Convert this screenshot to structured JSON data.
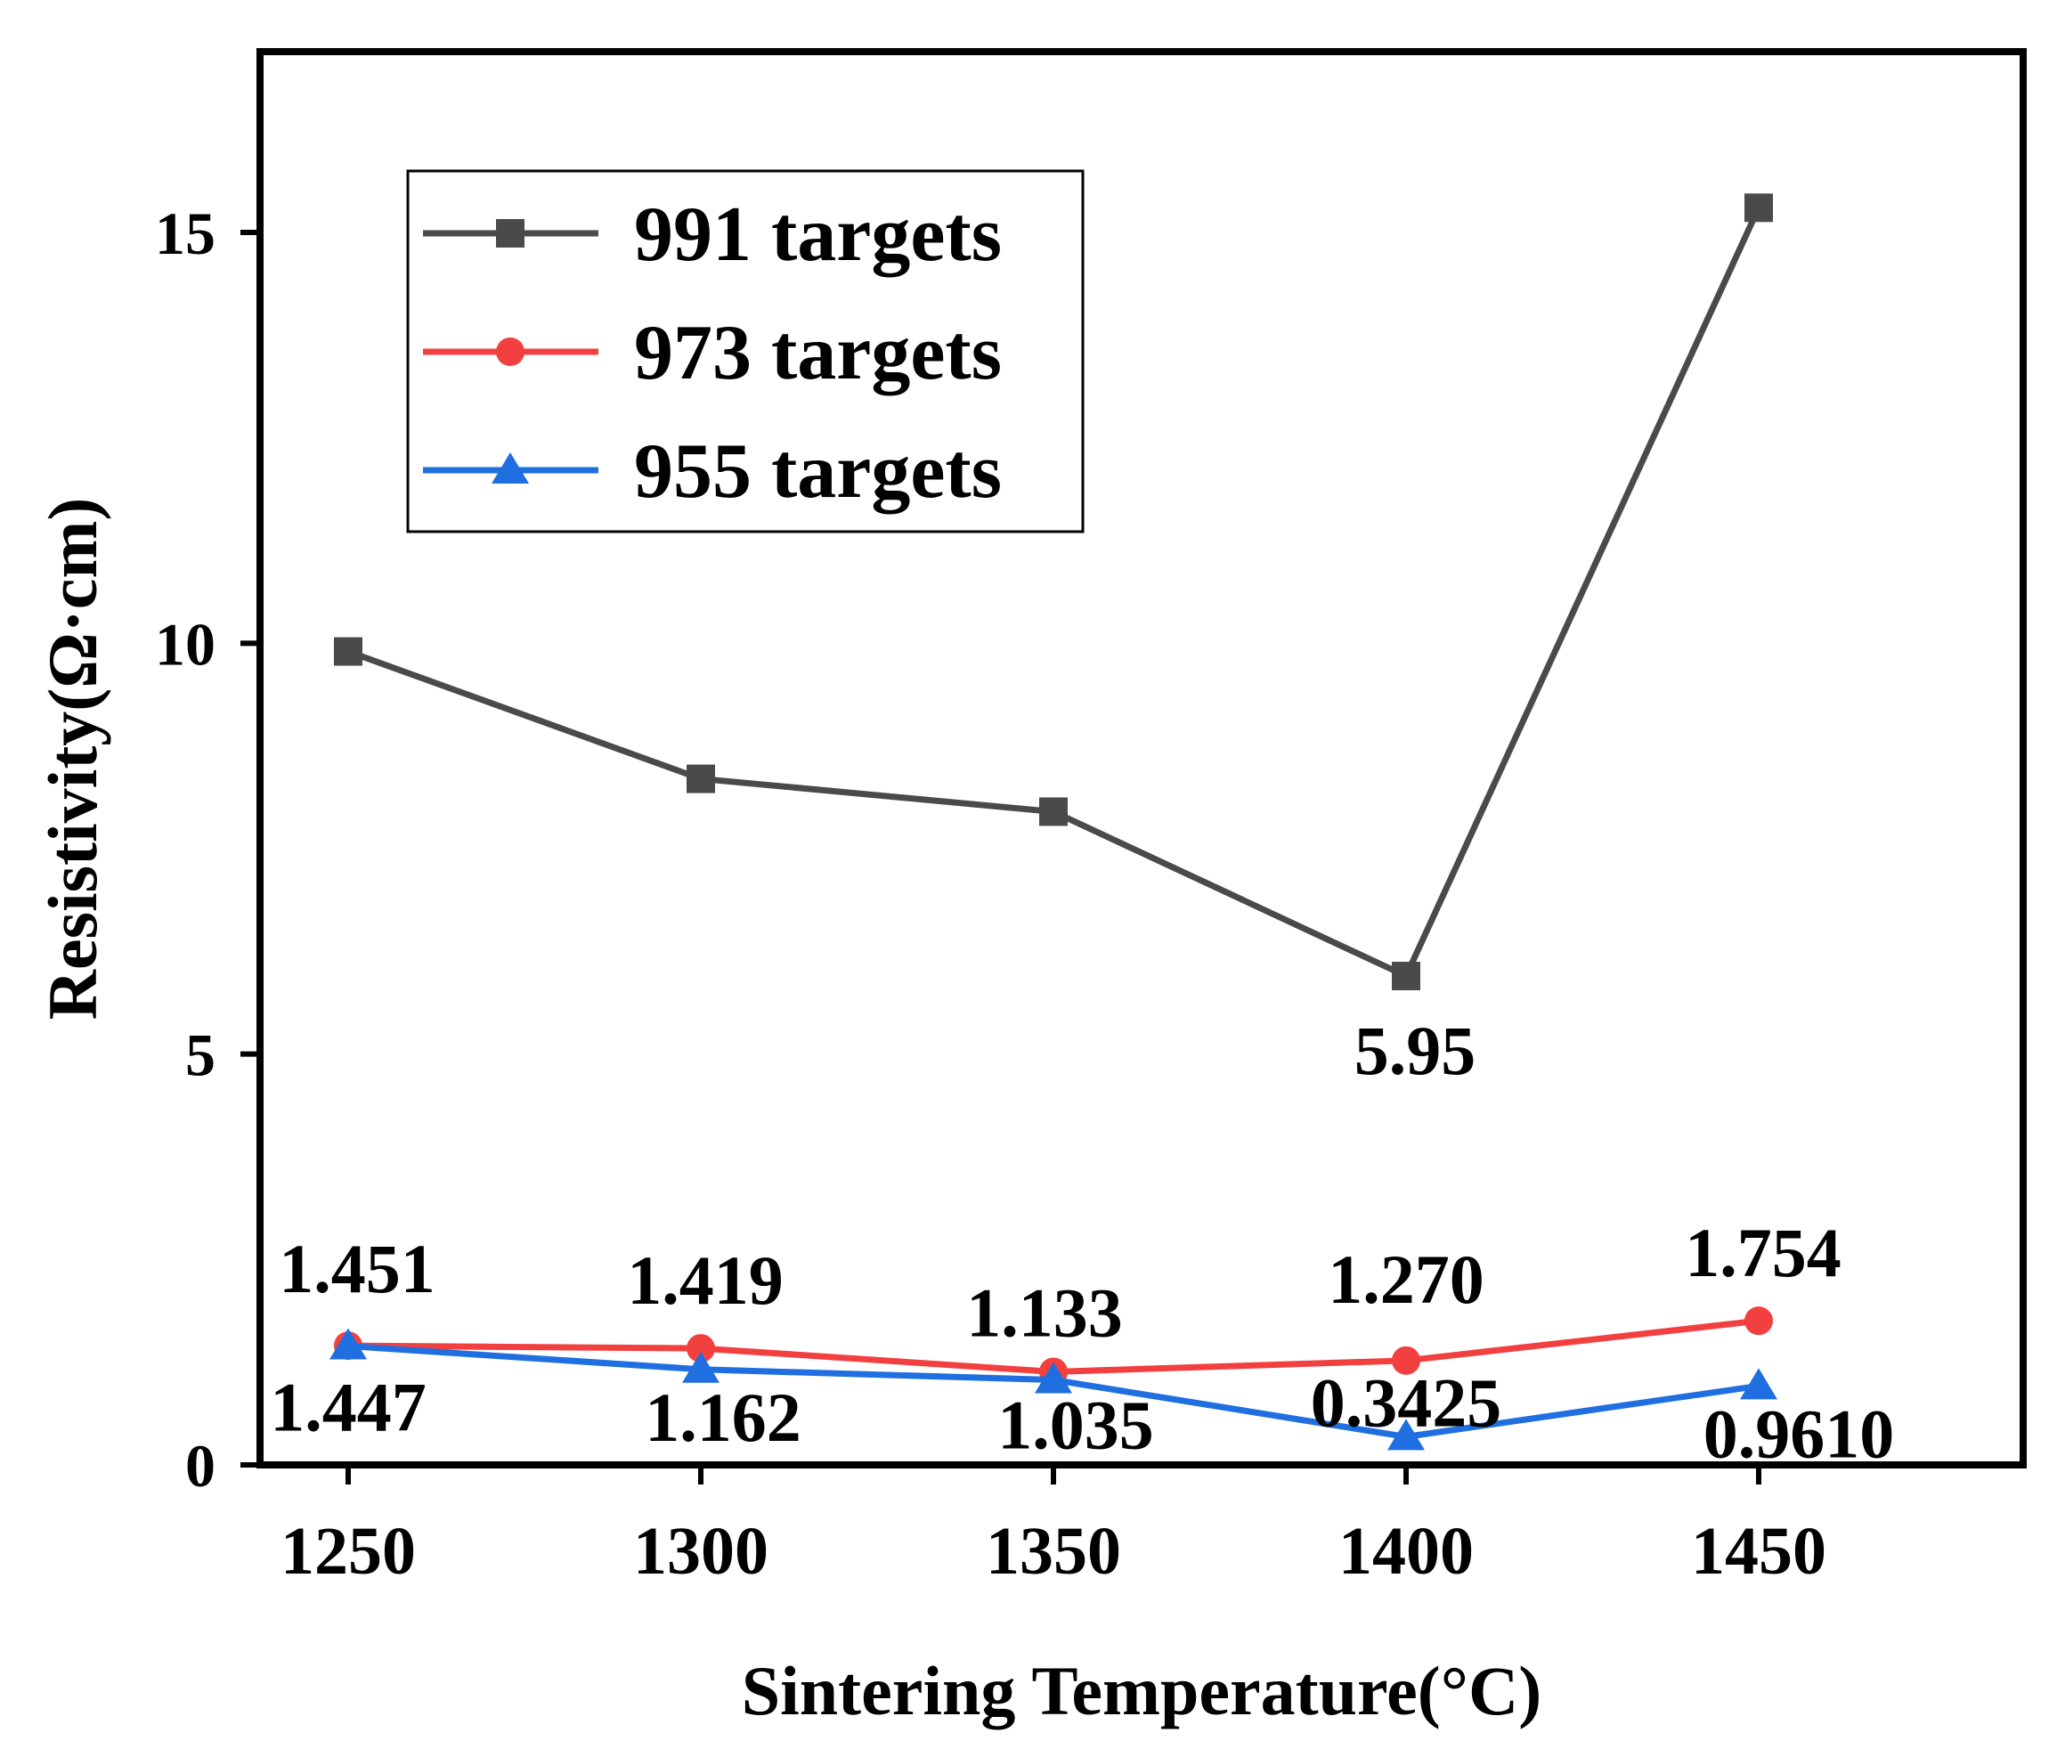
{
  "chart_data": {
    "type": "line",
    "title": "",
    "xlabel": "Sintering Temperature(°C)",
    "ylabel": "Resistivity(Ω·cm)",
    "x": [
      1250,
      1300,
      1350,
      1400,
      1450
    ],
    "x_tick_labels": [
      "1250",
      "1300",
      "1350",
      "1400",
      "1450"
    ],
    "xlim": [
      1237.5,
      1487.5
    ],
    "ylim": [
      0,
      17.2
    ],
    "y_ticks": [
      0,
      5,
      10,
      15
    ],
    "y_tick_labels": [
      "0",
      "5",
      "10",
      "15"
    ],
    "grid": false,
    "legend_position": "top-left",
    "series": [
      {
        "name": "991 targets",
        "color": "#4a4a4a",
        "marker": "square",
        "values": [
          9.9,
          8.35,
          7.95,
          5.95,
          15.3
        ],
        "labels": [
          "",
          "",
          "",
          "5.95",
          ""
        ]
      },
      {
        "name": "973 targets",
        "color": "#f24040",
        "marker": "circle",
        "values": [
          1.451,
          1.419,
          1.133,
          1.27,
          1.754
        ],
        "labels": [
          "1.451",
          "1.419",
          "1.133",
          "1.270",
          "1.754"
        ]
      },
      {
        "name": "955 targets",
        "color": "#1f6fe0",
        "marker": "triangle",
        "values": [
          1.447,
          1.162,
          1.035,
          0.3425,
          0.961
        ],
        "labels": [
          "1.447",
          "1.162",
          "1.035",
          "0.3425",
          "0.9610"
        ]
      }
    ]
  }
}
